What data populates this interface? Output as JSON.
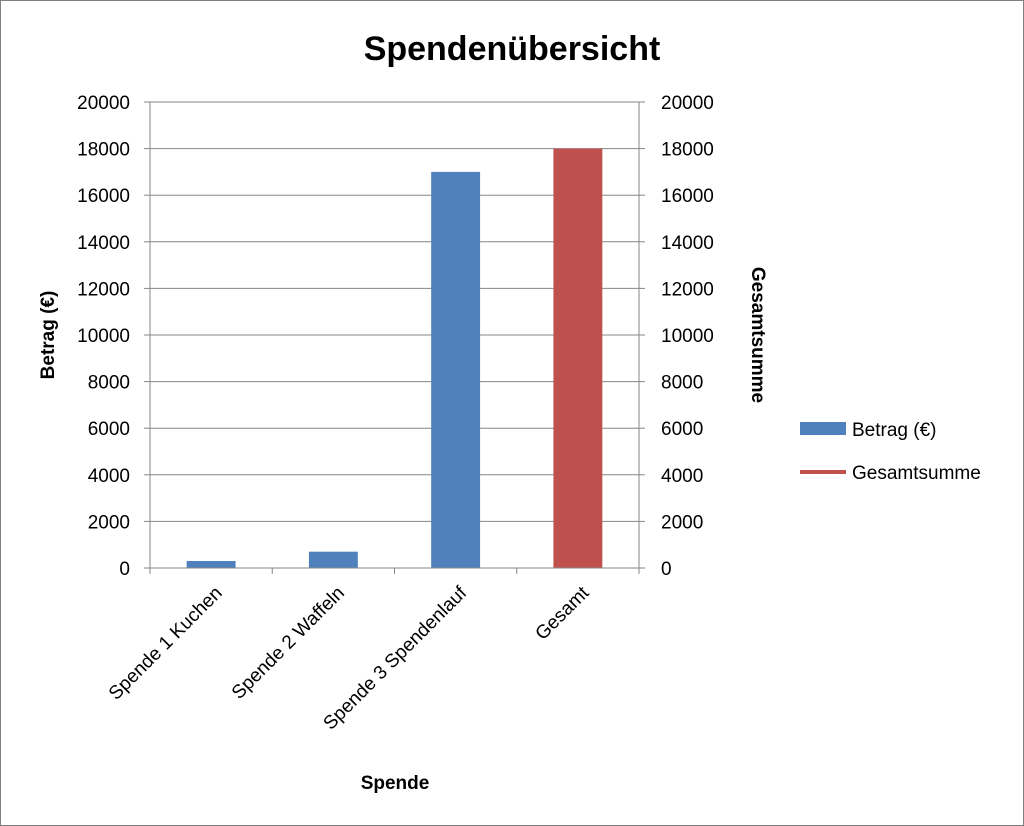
{
  "chart_data": {
    "type": "bar",
    "title": "Spendenübersicht",
    "xlabel": "Spende",
    "ylabel": "Betrag (€)",
    "y2label": "Gesamtsumme",
    "ylim": [
      0,
      20000
    ],
    "y2lim": [
      0,
      20000
    ],
    "yticks": [
      "0",
      "2000",
      "4000",
      "6000",
      "8000",
      "10000",
      "12000",
      "14000",
      "16000",
      "18000",
      "20000"
    ],
    "grid": true,
    "legend_position": "right",
    "categories": [
      "Spende 1 Kuchen",
      "Spende 2 Waffeln",
      "Spende 3 Spendenlauf",
      "Gesamt"
    ],
    "series": [
      {
        "name": "Betrag (€)",
        "values": [
          300,
          700,
          17000,
          null
        ],
        "color": "#4f81bd",
        "marker": "bar"
      },
      {
        "name": "Gesamtsumme",
        "values": [
          null,
          null,
          null,
          18000
        ],
        "color": "#c0504d",
        "marker": "line",
        "axis": "secondary"
      }
    ]
  }
}
